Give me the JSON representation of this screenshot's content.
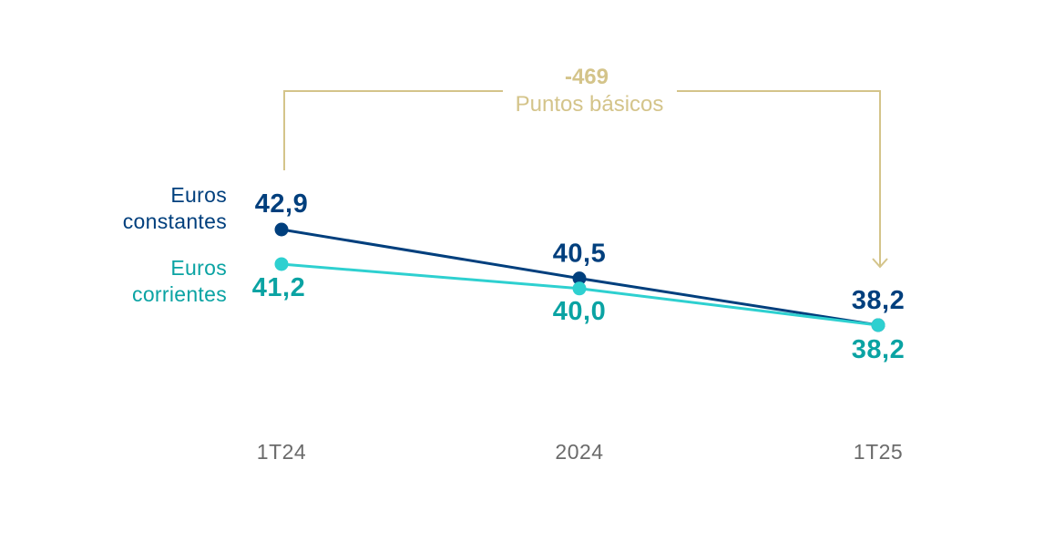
{
  "chart_data": {
    "type": "line",
    "title": "",
    "xlabel": "",
    "ylabel": "",
    "categories": [
      "1T24",
      "2024",
      "1T25"
    ],
    "ylim": [
      37,
      44
    ],
    "grid": false,
    "legend_placement": "left",
    "series": [
      {
        "name_lines": [
          "Euros",
          "constantes"
        ],
        "values": [
          42.9,
          40.5,
          38.2
        ],
        "labels": [
          "42,9",
          "40,5",
          "38,2"
        ],
        "color": "#003f7d"
      },
      {
        "name_lines": [
          "Euros",
          "corrientes"
        ],
        "values": [
          41.2,
          40.0,
          38.2
        ],
        "labels": [
          "41,2",
          "40,0",
          "38,2"
        ],
        "color": "#2ed0d0",
        "label_color": "#0aa3a3"
      }
    ],
    "annotation": {
      "value": "-469",
      "text": "Puntos básicos",
      "from": "1T24",
      "to": "1T25",
      "color": "#d4c48a"
    }
  }
}
